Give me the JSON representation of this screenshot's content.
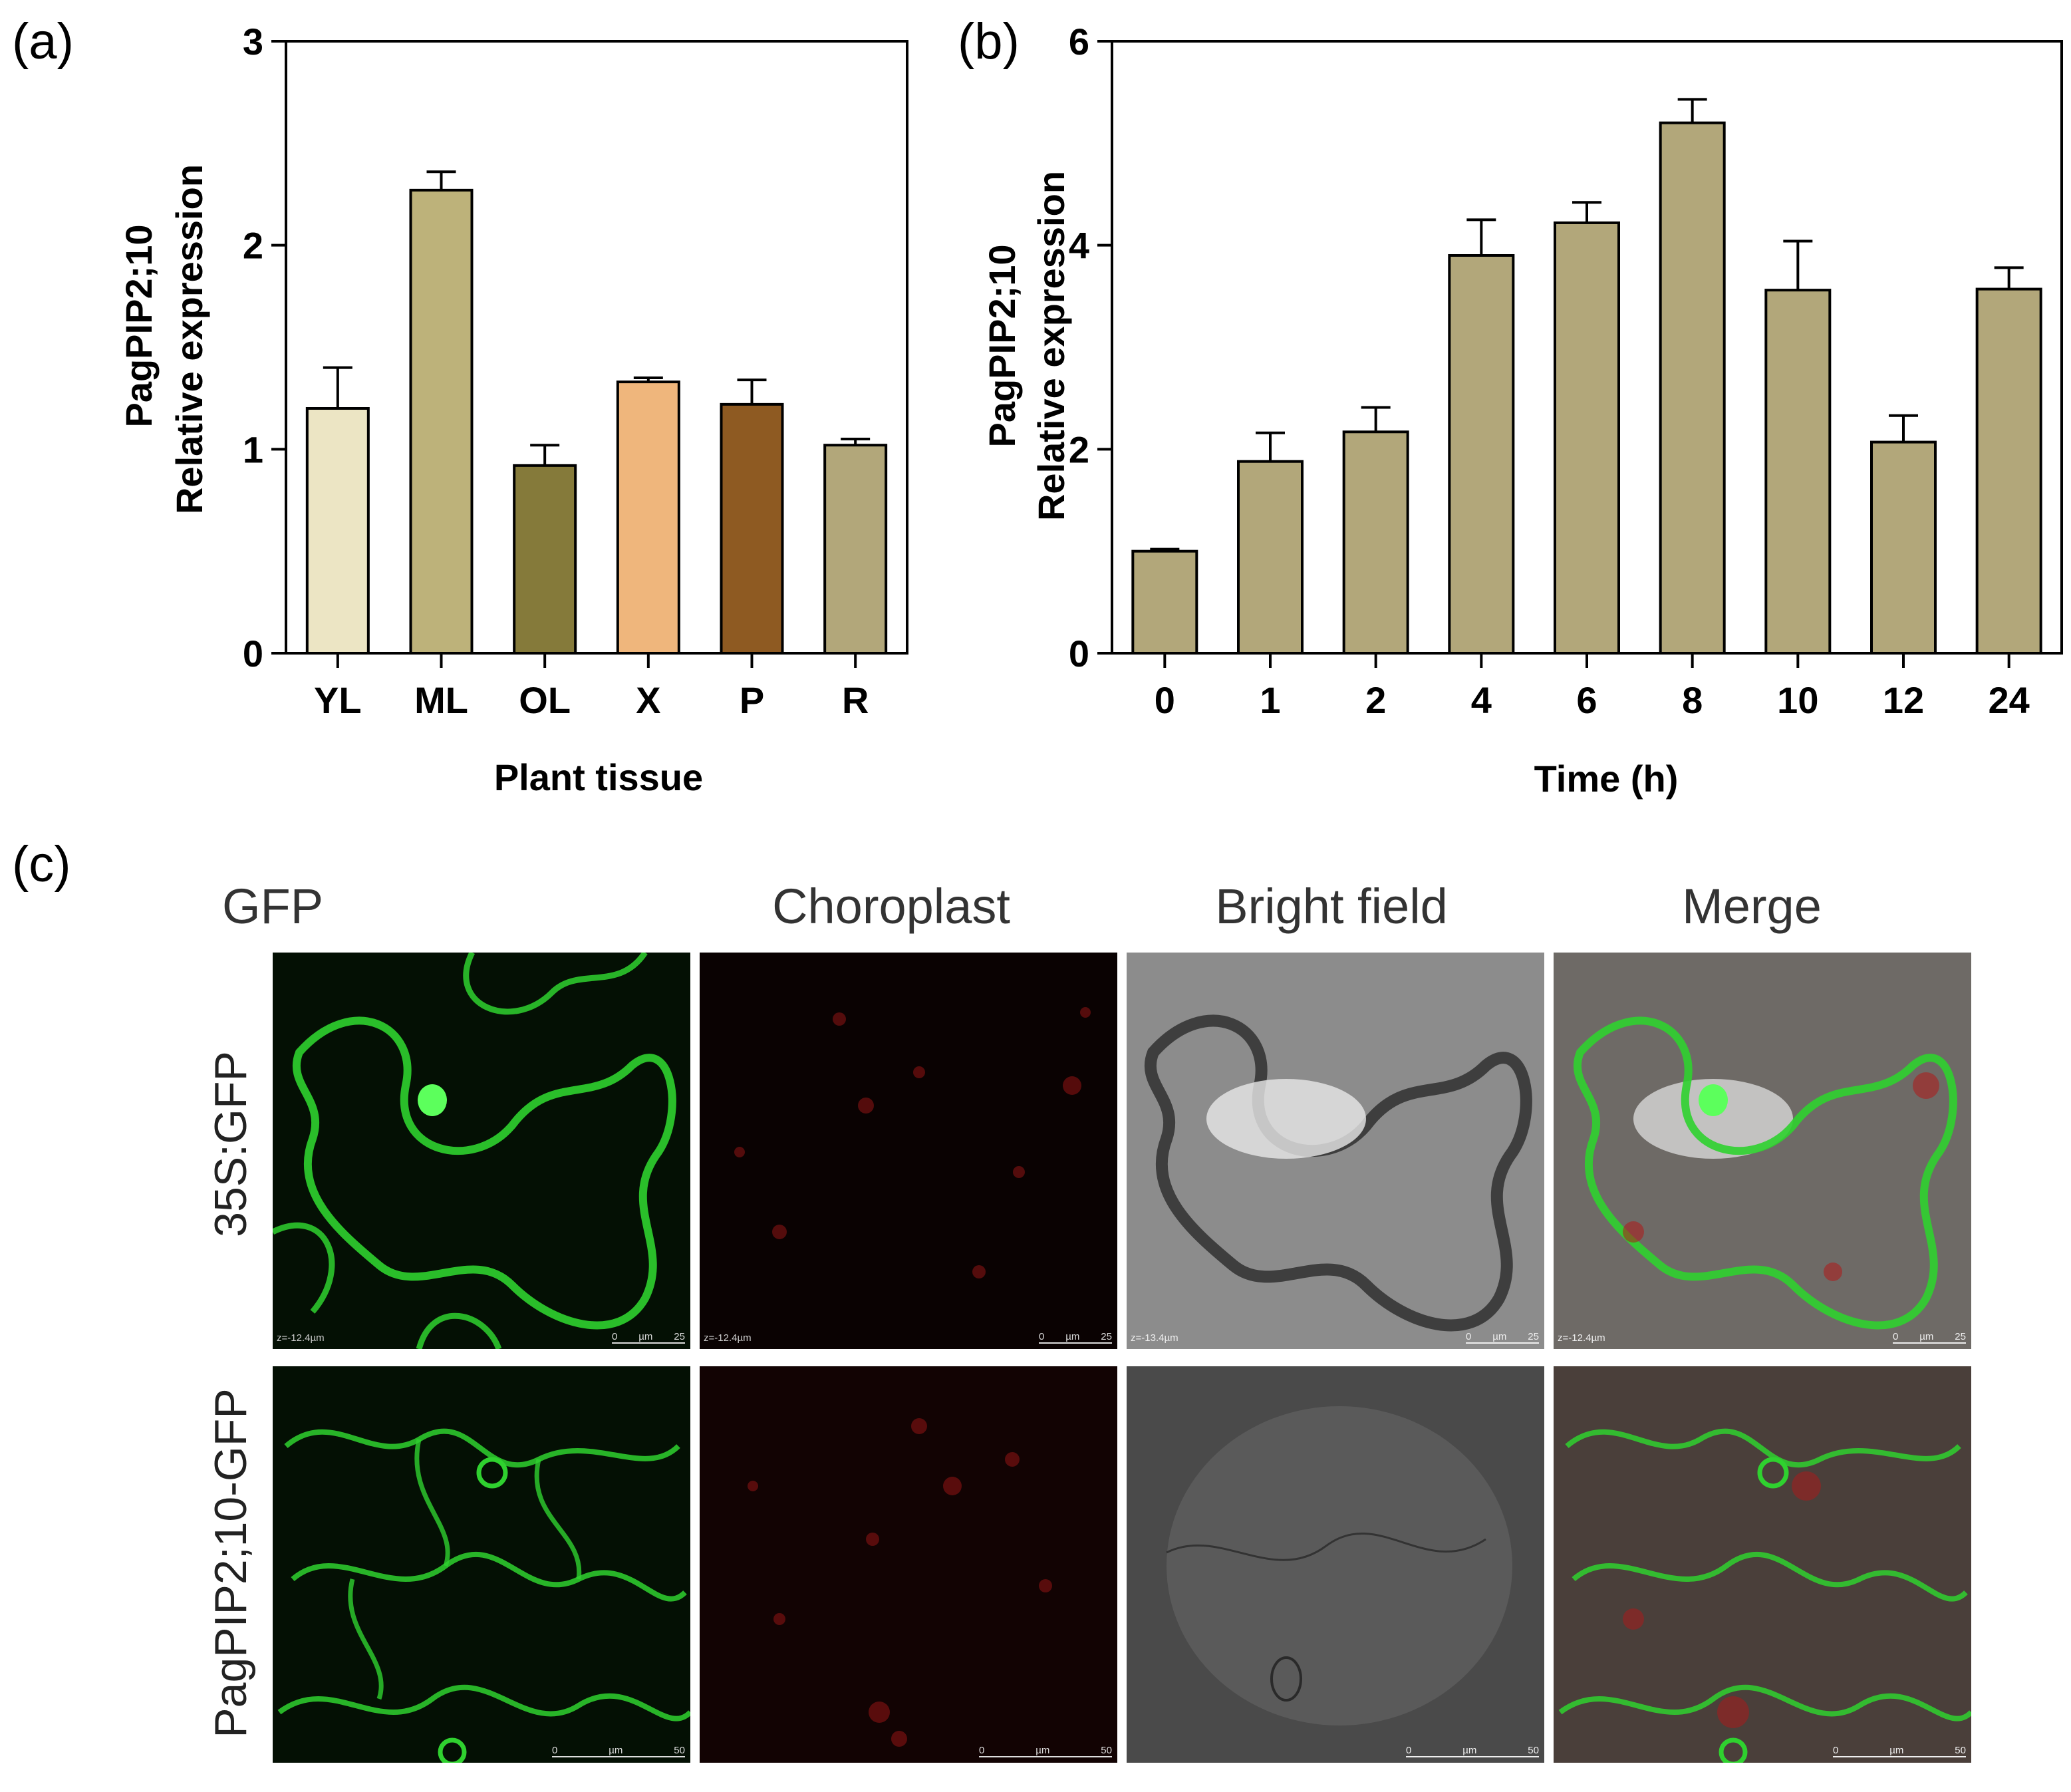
{
  "panel_a": {
    "label": "(a)",
    "ylabel_line1": "PagPIP2;10",
    "ylabel_line2": "Relative expression",
    "xlabel": "Plant tissue"
  },
  "panel_b": {
    "label": "(b)",
    "ylabel_line1": "PagPIP2;10",
    "ylabel_line2": "Relative expression",
    "xlabel": "Time (h)"
  },
  "panel_c": {
    "label": "(c)",
    "columns": [
      "GFP",
      "Choroplast",
      "Bright field",
      "Merge"
    ],
    "rows": [
      "35S:GFP",
      "PagPIP2;10-GFP"
    ],
    "z_labels": [
      [
        "z=-12.4µm",
        "z=-12.4µm",
        "z=-13.4µm",
        "z=-12.4µm"
      ],
      [
        "",
        "",
        "",
        ""
      ]
    ],
    "scale_bars": [
      {
        "start": "0",
        "unit": "µm",
        "end": "25"
      },
      {
        "start": "0",
        "unit": "µm",
        "end": "50"
      }
    ],
    "colors": {
      "gfp": "#2fd12f",
      "chloroplast": "#b01818",
      "bright": "#d6d6d6"
    }
  },
  "chart_data": [
    {
      "type": "bar",
      "categories": [
        "YL",
        "ML",
        "OL",
        "X",
        "P",
        "R"
      ],
      "values": [
        1.2,
        2.27,
        0.92,
        1.33,
        1.22,
        1.02
      ],
      "errors": [
        0.2,
        0.09,
        0.1,
        0.02,
        0.12,
        0.03
      ],
      "colors": [
        "#ece5c4",
        "#bdb27a",
        "#857a3a",
        "#efb67c",
        "#8e5a22",
        "#b2a77a"
      ],
      "xlabel": "Plant tissue",
      "ylabel": "PagPIP2;10 Relative expression",
      "ylim": [
        0,
        3
      ],
      "yticks": [
        0,
        1,
        2,
        3
      ],
      "grid": false
    },
    {
      "type": "bar",
      "categories": [
        "0",
        "1",
        "2",
        "4",
        "6",
        "8",
        "10",
        "12",
        "24"
      ],
      "values": [
        1.0,
        1.88,
        2.17,
        3.9,
        4.22,
        5.2,
        3.56,
        2.07,
        3.57
      ],
      "errors": [
        0.02,
        0.28,
        0.24,
        0.35,
        0.2,
        0.23,
        0.48,
        0.26,
        0.21
      ],
      "colors": [
        "#b2a77a",
        "#b2a77a",
        "#b2a77a",
        "#b2a77a",
        "#b2a77a",
        "#b2a77a",
        "#b2a77a",
        "#b2a77a",
        "#b2a77a"
      ],
      "xlabel": "Time (h)",
      "ylabel": "PagPIP2;10 Relative expression",
      "ylim": [
        0,
        6
      ],
      "yticks": [
        0,
        2,
        4,
        6
      ],
      "grid": false
    }
  ]
}
